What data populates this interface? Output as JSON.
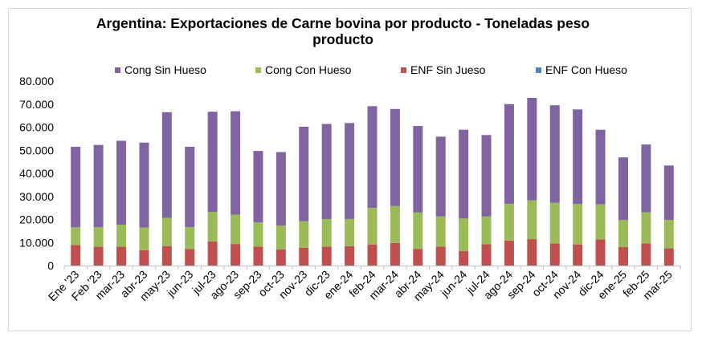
{
  "chart_data": {
    "type": "bar",
    "stacked": true,
    "title": "Argentina: Exportaciones de Carne bovina por producto - Toneladas peso producto",
    "xlabel": "",
    "ylabel": "",
    "ylim": [
      0,
      80000
    ],
    "yticks": [
      "0",
      "10.000",
      "20.000",
      "30.000",
      "40.000",
      "50.000",
      "60.000",
      "70.000",
      "80.000"
    ],
    "grid": false,
    "legend_position": "top",
    "categories": [
      "Ene '23",
      "Feb '23",
      "mar-23",
      "abr-23",
      "may-23",
      "jun-23",
      "jul-23",
      "ago-23",
      "sep-23",
      "oct-23",
      "nov-23",
      "dic-23",
      "ene-24",
      "feb-24",
      "mar-24",
      "abr-24",
      "may-24",
      "jun-24",
      "jul-24",
      "ago-24",
      "sep-24",
      "oct-24",
      "nov-24",
      "dic-24",
      "ene-25",
      "feb-25",
      "mar-25"
    ],
    "series": [
      {
        "name": "ENF Con Hueso",
        "color": "#4f81bd",
        "values": [
          150,
          150,
          150,
          150,
          150,
          150,
          150,
          150,
          150,
          150,
          150,
          150,
          150,
          150,
          150,
          150,
          150,
          150,
          150,
          150,
          150,
          150,
          150,
          150,
          150,
          150,
          150
        ]
      },
      {
        "name": "ENF Sin Jueso",
        "color": "#c0504d",
        "values": [
          8800,
          8000,
          8000,
          6500,
          8300,
          7000,
          10300,
          9200,
          8100,
          6900,
          7600,
          8100,
          8300,
          9000,
          9600,
          7100,
          8100,
          6200,
          9100,
          10700,
          11300,
          9400,
          9000,
          11200,
          7900,
          9500,
          7300
        ]
      },
      {
        "name": "Cong Con Hueso",
        "color": "#9bbb59",
        "values": [
          7650,
          8550,
          9550,
          9850,
          12250,
          9550,
          12750,
          12750,
          10450,
          10350,
          11450,
          11950,
          11750,
          15850,
          16050,
          15750,
          13050,
          14050,
          12050,
          15950,
          16850,
          17650,
          17550,
          15150,
          11650,
          13450,
          12350
        ]
      },
      {
        "name": "Cong Sin Hueso",
        "color": "#8064a2",
        "values": [
          34900,
          35600,
          36400,
          36800,
          45800,
          34800,
          43500,
          44800,
          31000,
          31800,
          41000,
          41200,
          41600,
          44100,
          42100,
          37500,
          34600,
          38500,
          35300,
          43200,
          44400,
          42300,
          41000,
          32400,
          27200,
          29400,
          23600
        ]
      }
    ]
  },
  "legend": [
    {
      "name": "Cong Sin Hueso",
      "color": "#8064a2"
    },
    {
      "name": "Cong Con Hueso",
      "color": "#9bbb59"
    },
    {
      "name": "ENF Sin Jueso",
      "color": "#c0504d"
    },
    {
      "name": "ENF Con Hueso",
      "color": "#4f81bd"
    }
  ]
}
